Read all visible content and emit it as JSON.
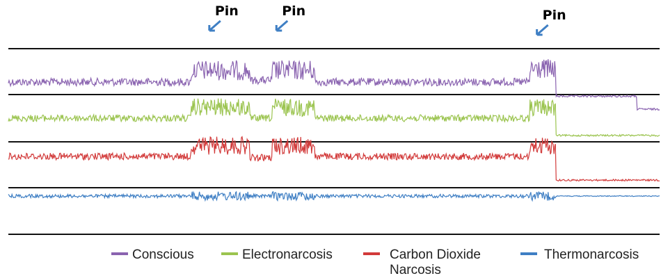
{
  "chart_data": {
    "type": "line",
    "title": "",
    "xlabel": "",
    "ylabel": "",
    "grid": "horizontal lines",
    "legend_position": "bottom",
    "annotations": [
      {
        "label": "Pin",
        "x": 0.315
      },
      {
        "label": "Pin",
        "x": 0.418
      },
      {
        "label": "Pin",
        "x": 0.818
      }
    ],
    "series": [
      {
        "name": "Conscious",
        "color": "#8a63b0",
        "baseline": 0.78,
        "noise": 0.18,
        "segments": [
          [
            0.0,
            0.28,
            0.78
          ],
          [
            0.28,
            0.37,
            1.05
          ],
          [
            0.37,
            0.405,
            0.82
          ],
          [
            0.405,
            0.47,
            1.05
          ],
          [
            0.47,
            0.8,
            0.78
          ],
          [
            0.8,
            0.84,
            1.08
          ],
          [
            0.84,
            0.965,
            0.45
          ],
          [
            0.965,
            1.0,
            0.15
          ]
        ]
      },
      {
        "name": "Electronarcosis",
        "color": "#9bc44f",
        "baseline": 0.55,
        "noise": 0.16,
        "segments": [
          [
            0.0,
            0.28,
            0.55
          ],
          [
            0.28,
            0.37,
            0.8
          ],
          [
            0.37,
            0.405,
            0.55
          ],
          [
            0.405,
            0.47,
            0.8
          ],
          [
            0.47,
            0.8,
            0.55
          ],
          [
            0.8,
            0.84,
            0.8
          ],
          [
            0.84,
            1.0,
            0.15
          ]
        ]
      },
      {
        "name": "Carbon Dioxide Narcosis",
        "color": "#d23a3a",
        "baseline": 0.35,
        "noise": 0.16,
        "segments": [
          [
            0.0,
            0.28,
            0.35
          ],
          [
            0.28,
            0.37,
            0.6
          ],
          [
            0.37,
            0.405,
            0.32
          ],
          [
            0.405,
            0.47,
            0.6
          ],
          [
            0.47,
            0.8,
            0.35
          ],
          [
            0.8,
            0.84,
            0.6
          ],
          [
            0.84,
            1.0,
            -0.2
          ]
        ]
      },
      {
        "name": "Thermonarcosis",
        "color": "#3f7fc4",
        "baseline": -0.2,
        "noise": 0.08,
        "segments": [
          [
            0.0,
            0.84,
            -0.2
          ],
          [
            0.84,
            1.0,
            -0.2
          ]
        ]
      }
    ]
  },
  "legend": {
    "items": [
      {
        "label": "Conscious"
      },
      {
        "label": "Electronarcosis"
      },
      {
        "label": "Carbon Dioxide Narcosis"
      },
      {
        "label": "Thermonarcosis"
      }
    ]
  }
}
